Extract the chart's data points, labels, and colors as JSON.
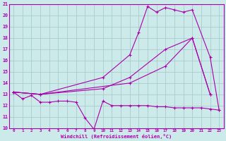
{
  "xlabel": "Windchill (Refroidissement éolien,°C)",
  "bg_color": "#cceaea",
  "grid_color": "#aacccc",
  "line_color": "#aa00aa",
  "xlim": [
    -0.5,
    23.5
  ],
  "ylim": [
    10,
    21
  ],
  "xticks": [
    0,
    1,
    2,
    3,
    4,
    5,
    6,
    7,
    8,
    9,
    10,
    11,
    12,
    13,
    14,
    15,
    16,
    17,
    18,
    19,
    20,
    21,
    22,
    23
  ],
  "yticks": [
    10,
    11,
    12,
    13,
    14,
    15,
    16,
    17,
    18,
    19,
    20,
    21
  ],
  "line1_x": [
    0,
    1,
    2,
    3,
    4,
    5,
    6,
    7,
    8,
    9,
    10,
    11,
    12,
    13,
    14,
    15,
    16,
    17,
    18,
    19,
    20,
    21,
    22,
    23
  ],
  "line1_y": [
    13.2,
    12.6,
    12.9,
    12.3,
    12.3,
    12.4,
    12.4,
    12.3,
    10.9,
    9.9,
    12.4,
    12.0,
    12.0,
    12.0,
    12.0,
    12.0,
    11.9,
    11.9,
    11.8,
    11.8,
    11.8,
    11.8,
    11.7,
    11.6
  ],
  "line2_x": [
    0,
    3,
    13,
    17,
    20,
    22
  ],
  "line2_y": [
    13.2,
    13.0,
    14.0,
    15.5,
    18.0,
    13.0
  ],
  "line3_x": [
    0,
    3,
    10,
    13,
    17,
    20,
    22
  ],
  "line3_y": [
    13.2,
    13.0,
    13.5,
    14.5,
    17.0,
    18.0,
    13.0
  ],
  "line4_x": [
    0,
    3,
    10,
    13,
    14,
    15,
    16,
    17,
    18,
    19,
    20,
    22,
    23
  ],
  "line4_y": [
    13.2,
    13.0,
    14.5,
    16.5,
    18.5,
    20.8,
    20.3,
    20.7,
    20.5,
    20.3,
    20.5,
    16.3,
    11.6
  ]
}
